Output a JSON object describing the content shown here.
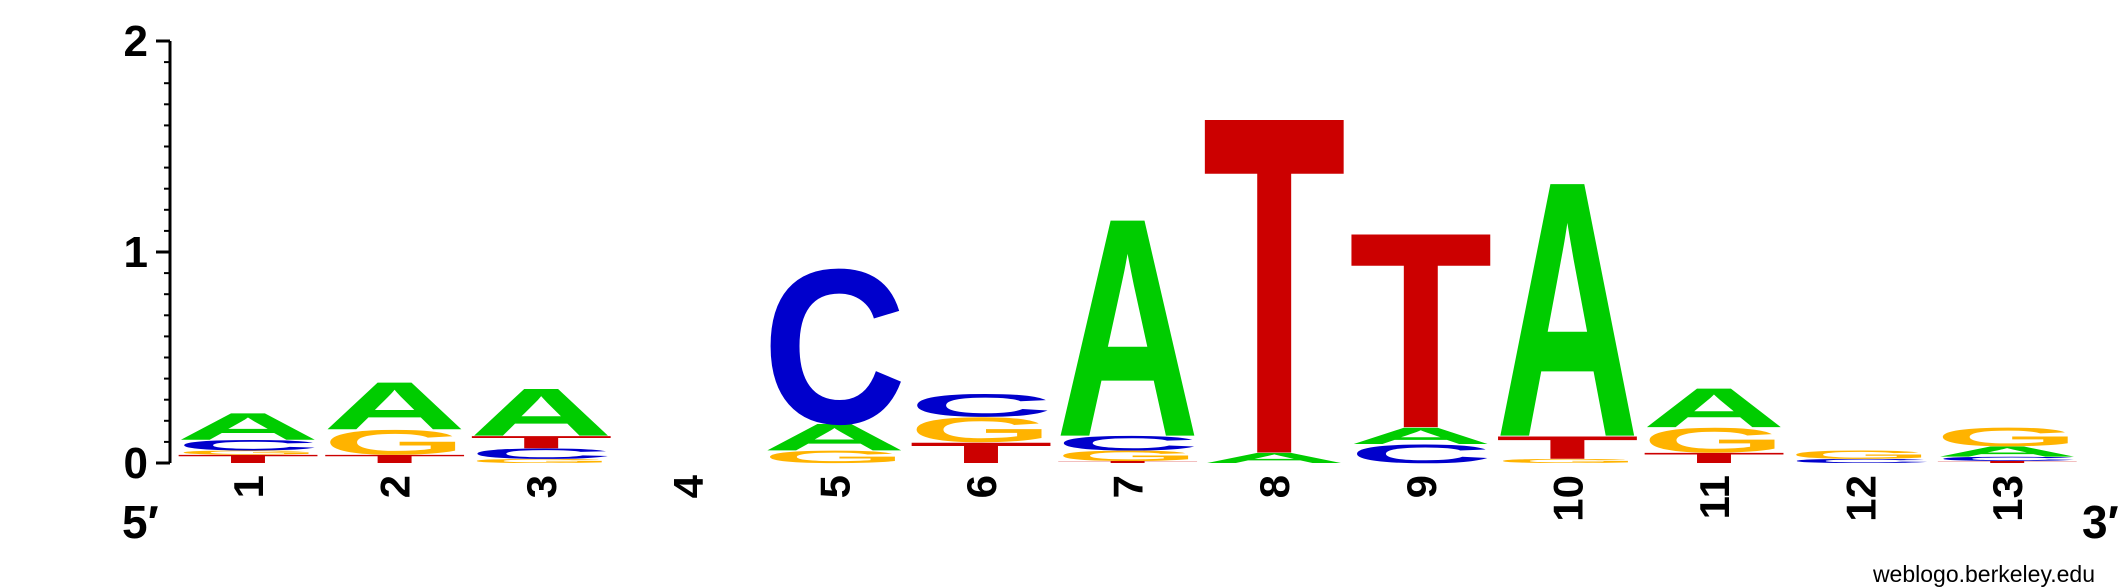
{
  "chart_data": {
    "type": "sequence-logo",
    "ylim": [
      0,
      2
    ],
    "yticks": [
      "0",
      "1",
      "2"
    ],
    "end_labels": {
      "left": "5′",
      "right": "3′"
    },
    "credit": "weblogo.berkeley.edu",
    "colors": {
      "A": "#00cc00",
      "C": "#0000cc",
      "G": "#ffb300",
      "T": "#cc0000"
    },
    "positions": [
      {
        "label": "1",
        "stack": [
          {
            "base": "T",
            "bits": 0.04
          },
          {
            "base": "G",
            "bits": 0.02
          },
          {
            "base": "C",
            "bits": 0.05
          },
          {
            "base": "A",
            "bits": 0.13
          }
        ]
      },
      {
        "label": "2",
        "stack": [
          {
            "base": "T",
            "bits": 0.04
          },
          {
            "base": "G",
            "bits": 0.12
          },
          {
            "base": "A",
            "bits": 0.23
          }
        ]
      },
      {
        "label": "3",
        "stack": [
          {
            "base": "G",
            "bits": 0.02
          },
          {
            "base": "C",
            "bits": 0.05
          },
          {
            "base": "T",
            "bits": 0.06
          },
          {
            "base": "A",
            "bits": 0.23
          }
        ]
      },
      {
        "label": "4",
        "stack": []
      },
      {
        "label": "5",
        "stack": [
          {
            "base": "G",
            "bits": 0.06
          },
          {
            "base": "A",
            "bits": 0.13
          },
          {
            "base": "C",
            "bits": 0.75
          }
        ]
      },
      {
        "label": "6",
        "stack": [
          {
            "base": "T",
            "bits": 0.1
          },
          {
            "base": "G",
            "bits": 0.12
          },
          {
            "base": "C",
            "bits": 0.11
          }
        ]
      },
      {
        "label": "7",
        "stack": [
          {
            "base": "T",
            "bits": 0.01
          },
          {
            "base": "G",
            "bits": 0.05
          },
          {
            "base": "C",
            "bits": 0.07
          },
          {
            "base": "A",
            "bits": 1.06
          }
        ]
      },
      {
        "label": "8",
        "stack": [
          {
            "base": "A",
            "bits": 0.05
          },
          {
            "base": "T",
            "bits": 1.64
          }
        ]
      },
      {
        "label": "9",
        "stack": [
          {
            "base": "C",
            "bits": 0.09
          },
          {
            "base": "A",
            "bits": 0.08
          },
          {
            "base": "T",
            "bits": 0.95
          }
        ]
      },
      {
        "label": "10",
        "stack": [
          {
            "base": "G",
            "bits": 0.02
          },
          {
            "base": "T",
            "bits": 0.11
          },
          {
            "base": "A",
            "bits": 1.24
          }
        ]
      },
      {
        "label": "11",
        "stack": [
          {
            "base": "T",
            "bits": 0.05
          },
          {
            "base": "G",
            "bits": 0.12
          },
          {
            "base": "A",
            "bits": 0.19
          }
        ]
      },
      {
        "label": "12",
        "stack": [
          {
            "base": "C",
            "bits": 0.02
          },
          {
            "base": "G",
            "bits": 0.04
          }
        ]
      },
      {
        "label": "13",
        "stack": [
          {
            "base": "T",
            "bits": 0.01
          },
          {
            "base": "C",
            "bits": 0.02
          },
          {
            "base": "A",
            "bits": 0.05
          },
          {
            "base": "G",
            "bits": 0.09
          }
        ]
      }
    ]
  }
}
